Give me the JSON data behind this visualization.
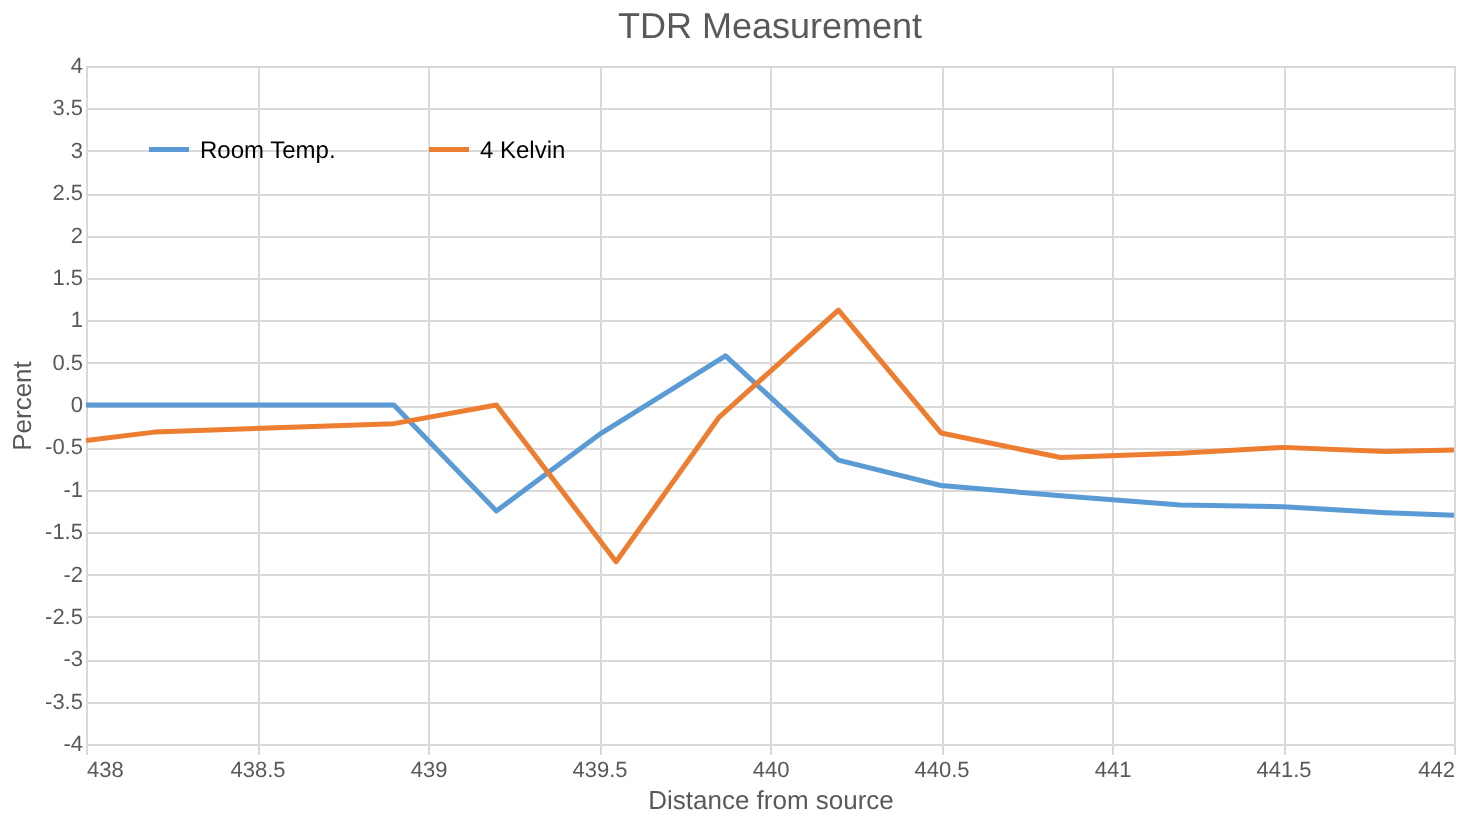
{
  "chart_data": {
    "type": "line",
    "title": "TDR Measurement",
    "xlabel": "Distance from source",
    "ylabel": "Percent",
    "xlim": [
      438,
      442
    ],
    "xticks": [
      438,
      438.5,
      439,
      439.5,
      440,
      440.5,
      441,
      441.5,
      442
    ],
    "ylim": [
      -4,
      4
    ],
    "yticks": [
      -4,
      -3.5,
      -3,
      -2.5,
      -2,
      -1.5,
      -1,
      -0.5,
      0,
      0.5,
      1,
      1.5,
      2,
      2.5,
      3,
      3.5,
      4
    ],
    "grid": true,
    "legend": "top left",
    "marker": "none",
    "line_style": "solid",
    "series": [
      {
        "name": "Room Temp.",
        "color": "#5b9bd5",
        "x": [
          438,
          438.9,
          439.2,
          439.5,
          439.87,
          440.2,
          440.5,
          440.85,
          441.2,
          441.5,
          441.8,
          442
        ],
        "values": [
          0,
          0,
          -1.25,
          -0.35,
          0.58,
          -0.65,
          -0.95,
          -1.07,
          -1.18,
          -1.2,
          -1.27,
          -1.3
        ]
      },
      {
        "name": "4 Kelvin",
        "color": "#ed7d31",
        "x": [
          438,
          438.2,
          438.9,
          439.2,
          439.55,
          439.85,
          440.2,
          440.5,
          440.85,
          441.2,
          441.5,
          441.8,
          442
        ],
        "values": [
          -0.42,
          -0.32,
          -0.22,
          0,
          -1.85,
          -0.15,
          1.12,
          -0.33,
          -0.62,
          -0.57,
          -0.5,
          -0.55,
          -0.53
        ]
      }
    ]
  }
}
